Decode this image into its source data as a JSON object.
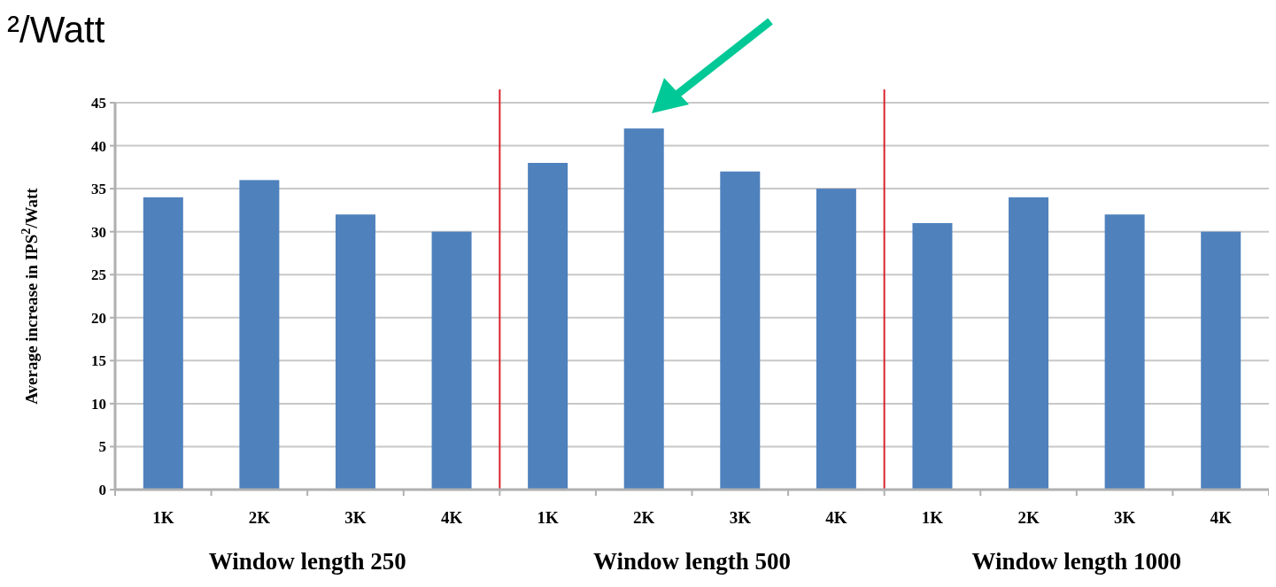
{
  "chart_data": {
    "type": "bar",
    "title": "²/Watt",
    "ylabel": "Average increase in IPS$^{2}$/Watt",
    "categories": [
      "1K",
      "2K",
      "3K",
      "4K",
      "1K",
      "2K",
      "3K",
      "4K",
      "1K",
      "2K",
      "3K",
      "4K"
    ],
    "values": [
      34,
      36,
      32,
      30,
      38,
      42,
      37,
      35,
      31,
      34,
      32,
      30
    ],
    "color": "#4f81bd",
    "ylim": [
      0,
      45
    ],
    "yticks": [
      0,
      5,
      10,
      15,
      20,
      25,
      30,
      35,
      40,
      45
    ],
    "grid": "y",
    "annotations": [
      "Window length 250",
      "Window length 500",
      "Window length 1000"
    ]
  }
}
